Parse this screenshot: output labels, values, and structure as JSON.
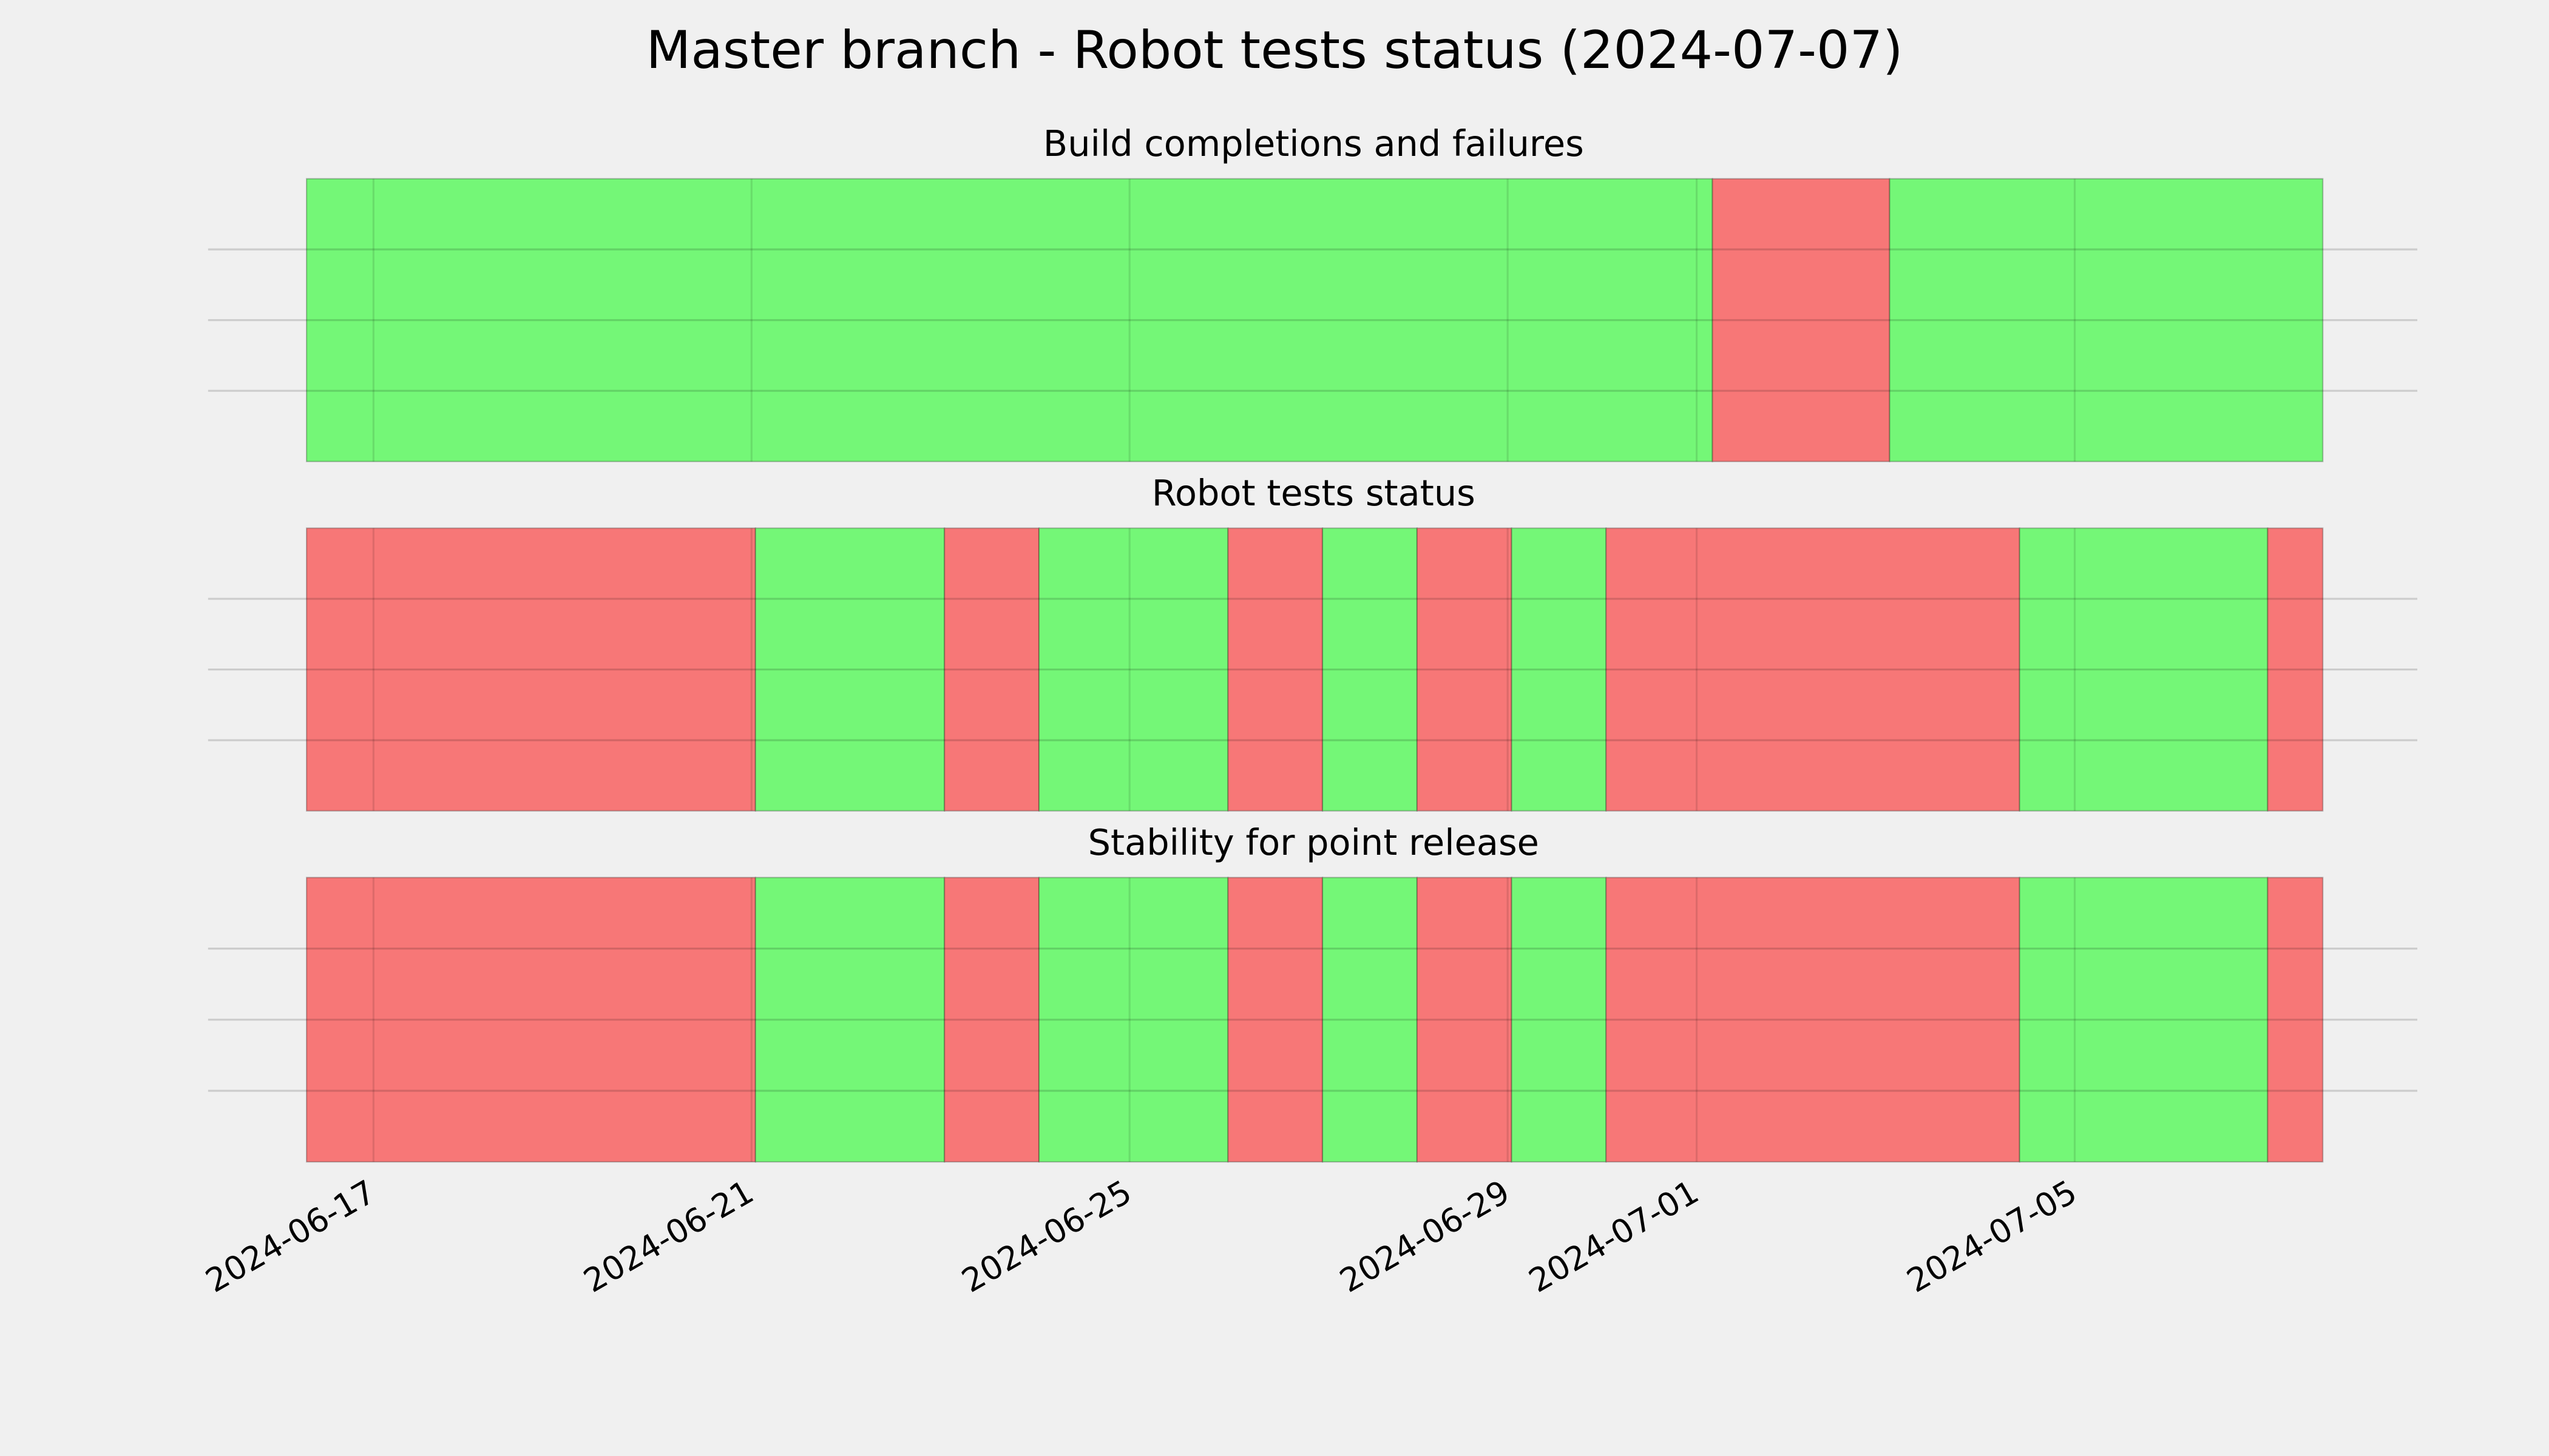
{
  "title": "Master branch - Robot tests status (2024-07-07)",
  "chart_data": [
    {
      "type": "timeline",
      "title": "Build completions and failures",
      "xlim": [
        "2024-06-15T06:00",
        "2024-07-08T15:00"
      ],
      "xticks": [
        "2024-06-17",
        "2024-06-21",
        "2024-06-25",
        "2024-06-29",
        "2024-07-01",
        "2024-07-05"
      ],
      "ylim": [
        0,
        1
      ],
      "yticks": [
        0.25,
        0.5,
        0.75
      ],
      "grid": true,
      "show_xtick_labels": false,
      "colors": {
        "pass": "#74f777",
        "fail": "#f77777"
      },
      "segments": [
        {
          "start": "2024-06-16T07:00",
          "end": "2024-07-01T04:00",
          "status": "pass"
        },
        {
          "start": "2024-07-01T04:00",
          "end": "2024-07-03T01:00",
          "status": "fail"
        },
        {
          "start": "2024-07-03T01:00",
          "end": "2024-07-07T15:00",
          "status": "pass"
        }
      ]
    },
    {
      "type": "timeline",
      "title": "Robot tests status",
      "xlim": [
        "2024-06-15T06:00",
        "2024-07-08T15:00"
      ],
      "xticks": [
        "2024-06-17",
        "2024-06-21",
        "2024-06-25",
        "2024-06-29",
        "2024-07-01",
        "2024-07-05"
      ],
      "ylim": [
        0,
        1
      ],
      "yticks": [
        0.25,
        0.5,
        0.75
      ],
      "grid": true,
      "show_xtick_labels": false,
      "colors": {
        "pass": "#74f777",
        "fail": "#f77777"
      },
      "segments": [
        {
          "start": "2024-06-16T07:00",
          "end": "2024-06-21T01:00",
          "status": "fail"
        },
        {
          "start": "2024-06-21T01:00",
          "end": "2024-06-23T01:00",
          "status": "pass"
        },
        {
          "start": "2024-06-23T01:00",
          "end": "2024-06-24T01:00",
          "status": "fail"
        },
        {
          "start": "2024-06-24T01:00",
          "end": "2024-06-26T01:00",
          "status": "pass"
        },
        {
          "start": "2024-06-26T01:00",
          "end": "2024-06-27T01:00",
          "status": "fail"
        },
        {
          "start": "2024-06-27T01:00",
          "end": "2024-06-28T01:00",
          "status": "pass"
        },
        {
          "start": "2024-06-28T01:00",
          "end": "2024-06-29T01:00",
          "status": "fail"
        },
        {
          "start": "2024-06-29T01:00",
          "end": "2024-06-30T01:00",
          "status": "pass"
        },
        {
          "start": "2024-06-30T01:00",
          "end": "2024-07-04T10:00",
          "status": "fail"
        },
        {
          "start": "2024-07-04T10:00",
          "end": "2024-07-07T01:00",
          "status": "pass"
        },
        {
          "start": "2024-07-07T01:00",
          "end": "2024-07-07T15:00",
          "status": "fail"
        }
      ]
    },
    {
      "type": "timeline",
      "title": "Stability for point release",
      "xlim": [
        "2024-06-15T06:00",
        "2024-07-08T15:00"
      ],
      "xticks": [
        "2024-06-17",
        "2024-06-21",
        "2024-06-25",
        "2024-06-29",
        "2024-07-01",
        "2024-07-05"
      ],
      "ylim": [
        0,
        1
      ],
      "yticks": [
        0.25,
        0.5,
        0.75
      ],
      "grid": true,
      "show_xtick_labels": true,
      "colors": {
        "pass": "#74f777",
        "fail": "#f77777"
      },
      "segments": [
        {
          "start": "2024-06-16T07:00",
          "end": "2024-06-21T01:00",
          "status": "fail"
        },
        {
          "start": "2024-06-21T01:00",
          "end": "2024-06-23T01:00",
          "status": "pass"
        },
        {
          "start": "2024-06-23T01:00",
          "end": "2024-06-24T01:00",
          "status": "fail"
        },
        {
          "start": "2024-06-24T01:00",
          "end": "2024-06-26T01:00",
          "status": "pass"
        },
        {
          "start": "2024-06-26T01:00",
          "end": "2024-06-27T01:00",
          "status": "fail"
        },
        {
          "start": "2024-06-27T01:00",
          "end": "2024-06-28T01:00",
          "status": "pass"
        },
        {
          "start": "2024-06-28T01:00",
          "end": "2024-06-29T01:00",
          "status": "fail"
        },
        {
          "start": "2024-06-29T01:00",
          "end": "2024-06-30T01:00",
          "status": "pass"
        },
        {
          "start": "2024-06-30T01:00",
          "end": "2024-07-04T10:00",
          "status": "fail"
        },
        {
          "start": "2024-07-04T10:00",
          "end": "2024-07-07T01:00",
          "status": "pass"
        },
        {
          "start": "2024-07-07T01:00",
          "end": "2024-07-07T15:00",
          "status": "fail"
        }
      ]
    }
  ]
}
